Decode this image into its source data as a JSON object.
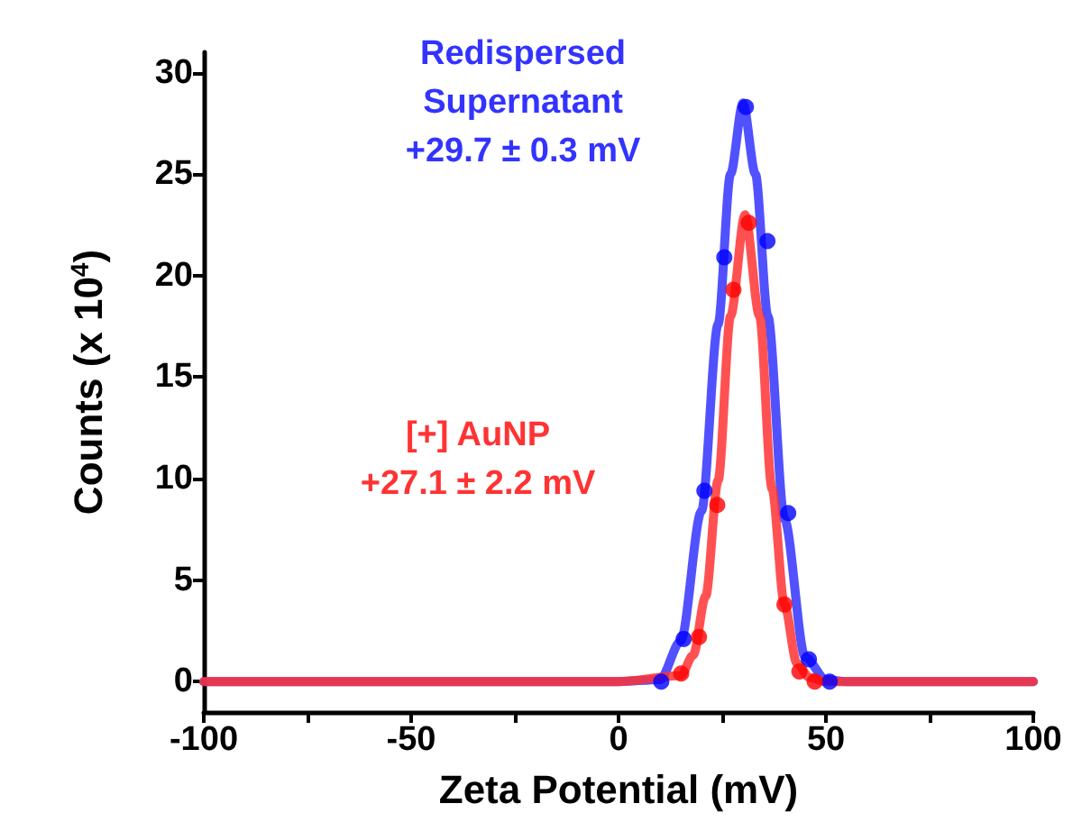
{
  "chart_data": {
    "type": "line",
    "xlabel": "Zeta Potential (mV)",
    "ylabel": "Counts (x 10$^{4}$)",
    "xlim": [
      -100,
      100
    ],
    "xticks": [
      -100,
      {
        "value": -75,
        "label": null
      },
      -50,
      {
        "value": -25,
        "label": null
      },
      0,
      {
        "value": 25,
        "label": null
      },
      50,
      {
        "value": 75,
        "label": null
      },
      100
    ],
    "ylim": [
      -1.5,
      31
    ],
    "yticks": [
      0,
      5,
      10,
      15,
      20,
      25,
      30
    ],
    "grid": false,
    "series": [
      {
        "color": "#3333ff",
        "x": [
          -100,
          0,
          10,
          15,
          20,
          24,
          27,
          30,
          33,
          36,
          40,
          45,
          50,
          55,
          100
        ],
        "values": [
          0,
          0,
          0.1,
          2,
          8.4,
          17.6,
          25,
          28.5,
          25,
          18,
          8,
          1.2,
          0.1,
          0,
          0
        ],
        "marker": "none"
      },
      {
        "color": "#ff3333",
        "x": [
          -100,
          0,
          15,
          18,
          21,
          24,
          27,
          30.5,
          34,
          37,
          40,
          43,
          46,
          50,
          100
        ],
        "values": [
          0,
          0,
          0.3,
          1.3,
          4.2,
          9.9,
          18,
          23,
          18,
          9.5,
          3.8,
          0.9,
          0.2,
          0,
          0
        ],
        "marker": "none"
      },
      {
        "type": "scatter",
        "color": "#0000ff",
        "x": [
          10.3,
          15.7,
          20.7,
          25.5,
          30.7,
          35.9,
          40.9,
          45.9,
          50.9
        ],
        "values": [
          0,
          2.1,
          9.4,
          20.9,
          28.3,
          21.7,
          8.3,
          1.1,
          0
        ],
        "marker": "circle"
      },
      {
        "type": "scatter",
        "color": "#ff0000",
        "x": [
          15.1,
          19.4,
          23.8,
          27.7,
          31.4,
          40,
          43.6,
          47.3
        ],
        "values": [
          0.4,
          2.2,
          8.7,
          19.3,
          22.6,
          3.8,
          0.5,
          0
        ],
        "marker": "circle"
      }
    ],
    "annotations": [
      "Redispersed\nSupernatant\n+29.7 ± 0.3 mV",
      "[+] AuNP\n+27.1 ± 2.2 mV"
    ]
  }
}
